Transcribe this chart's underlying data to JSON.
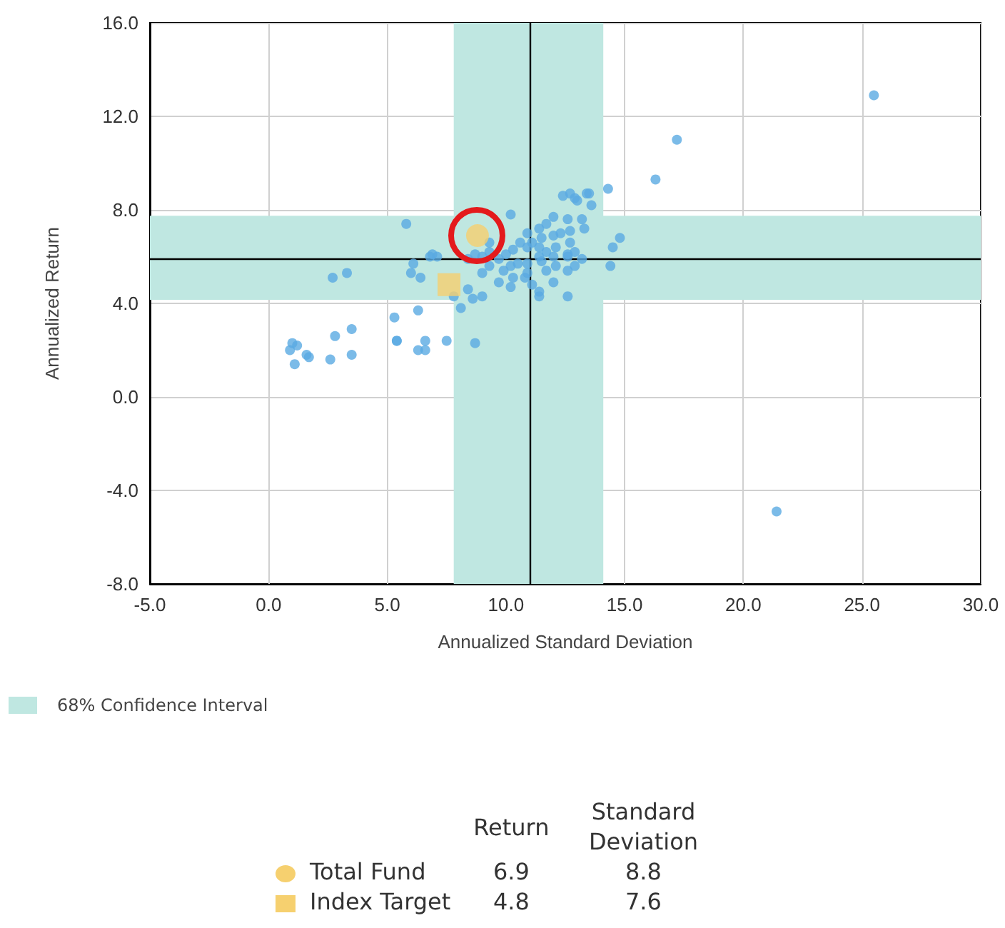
{
  "chart_data": {
    "type": "scatter",
    "xlabel": "Annualized Standard Deviation",
    "ylabel": "Annualized Return",
    "xlim": [
      -5,
      30
    ],
    "xticks": [
      {
        "value": -5,
        "label": "-5.0"
      },
      {
        "value": 0,
        "label": "0.0"
      },
      {
        "value": 5,
        "label": "5.0"
      },
      {
        "value": 10,
        "label": "10.0"
      },
      {
        "value": 15,
        "label": "15.0"
      },
      {
        "value": 20,
        "label": "20.0"
      },
      {
        "value": 25,
        "label": "25.0"
      },
      {
        "value": 30,
        "label": "30.0"
      }
    ],
    "ylim": [
      -8,
      16
    ],
    "yticks": [
      {
        "value": -8,
        "label": "-8.0"
      },
      {
        "value": -4,
        "label": "-4.0"
      },
      {
        "value": 0,
        "label": "0.0"
      },
      {
        "value": 4,
        "label": "4.0"
      },
      {
        "value": 8,
        "label": "8.0"
      },
      {
        "value": 12,
        "label": "12.0"
      },
      {
        "value": 16,
        "label": "16.0"
      }
    ],
    "grid": true,
    "legend": "bottom",
    "annotations": [
      "Return",
      "Standard Deviation",
      "6.9",
      "8.8",
      "4.8",
      "7.6"
    ],
    "bands": [
      {
        "axis": "x",
        "from": 7.8,
        "to": 14.1,
        "label": "68% Confidence Interval",
        "color": "#bfe7e1"
      },
      {
        "axis": "y",
        "from": 4.15,
        "to": 7.75,
        "color": "#bfe7e1"
      }
    ],
    "ref_lines": [
      {
        "axis": "x",
        "value": 11.0,
        "color": "#000000"
      },
      {
        "axis": "y",
        "value": 5.9,
        "color": "#000000"
      }
    ],
    "series": [
      {
        "color": "#5aaae2",
        "marker": "circle",
        "x": [
          25.5,
          21.4,
          17.2,
          16.3,
          14.3,
          13.5,
          12.7,
          12.4,
          13.0,
          14.8,
          14.5,
          14.4,
          12.6,
          12.6,
          5.8,
          10.2,
          1.0,
          1.2,
          0.9,
          1.6,
          1.7,
          2.6,
          3.5,
          3.5,
          2.8,
          2.7,
          3.3,
          5.3,
          5.4,
          6.3,
          6.6,
          7.5,
          8.7,
          6.3,
          6.0,
          6.1,
          6.8,
          6.4,
          1.1,
          8.1,
          5.4,
          6.6,
          7.8,
          8.6,
          9.0,
          8.4,
          12.9,
          13.4,
          13.6,
          12.0,
          12.6,
          13.2,
          13.3,
          11.4,
          10.2,
          9.7,
          9.0,
          13.2,
          12.9,
          12.7,
          10.9,
          11.4,
          11.7,
          11.5,
          11.1,
          10.6,
          10.3,
          10.0,
          9.7,
          9.3,
          9.0,
          8.7,
          9.3,
          10.2,
          10.5,
          11.4,
          11.7,
          12.1,
          12.0,
          12.3,
          12.7,
          12.1,
          11.7,
          10.9,
          11.1,
          11.4,
          12.0,
          12.6,
          12.9,
          10.8,
          10.3,
          9.9,
          11.5,
          10.9,
          10.9,
          11.4,
          12.0,
          12.6,
          9.3,
          8.4,
          6.9,
          7.1
        ],
        "values": [
          12.9,
          -4.9,
          11.0,
          9.3,
          8.9,
          8.7,
          8.7,
          8.6,
          8.4,
          6.8,
          6.4,
          5.6,
          6.1,
          4.3,
          7.4,
          7.8,
          2.3,
          2.2,
          2.0,
          1.8,
          1.7,
          1.6,
          1.8,
          2.9,
          2.6,
          5.1,
          5.3,
          3.4,
          2.4,
          2.0,
          2.4,
          2.4,
          2.3,
          3.7,
          5.3,
          5.7,
          6.0,
          5.1,
          1.4,
          3.8,
          2.4,
          2.0,
          4.3,
          4.2,
          4.3,
          4.6,
          8.5,
          8.7,
          8.2,
          7.7,
          7.6,
          7.6,
          7.2,
          4.3,
          4.7,
          4.9,
          5.3,
          5.9,
          6.2,
          6.6,
          7.0,
          7.2,
          7.4,
          6.8,
          6.6,
          6.6,
          6.3,
          6.1,
          5.9,
          6.2,
          6.0,
          6.1,
          5.6,
          5.6,
          5.7,
          6.0,
          6.2,
          6.4,
          6.9,
          7.0,
          7.1,
          5.6,
          5.4,
          5.3,
          4.8,
          4.5,
          4.9,
          5.4,
          5.6,
          5.1,
          5.1,
          5.4,
          5.8,
          5.7,
          6.4,
          6.4,
          6.0,
          6.0,
          6.6,
          5.9,
          6.1,
          6.0
        ]
      },
      {
        "name": "Total Fund",
        "color": "#f6d06f",
        "marker": "circle",
        "x": [
          8.8
        ],
        "values": [
          6.9
        ]
      },
      {
        "name": "Index Target",
        "color": "#f6d06f",
        "marker": "square",
        "x": [
          7.6
        ],
        "values": [
          4.8
        ]
      }
    ]
  }
}
